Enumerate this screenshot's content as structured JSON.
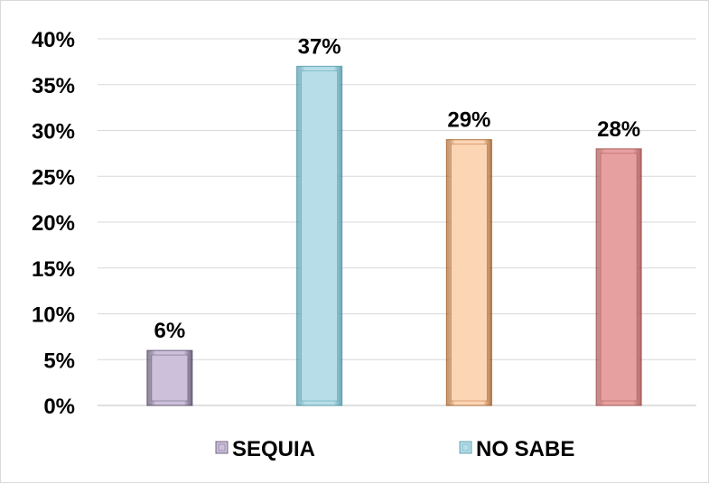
{
  "chart_data": {
    "type": "bar",
    "title": "",
    "xlabel": "",
    "ylabel": "",
    "ylim": [
      0,
      40
    ],
    "y_ticks": [
      "0%",
      "5%",
      "10%",
      "15%",
      "20%",
      "25%",
      "30%",
      "35%",
      "40%"
    ],
    "y_tick_values": [
      0,
      5,
      10,
      15,
      20,
      25,
      30,
      35,
      40
    ],
    "grid": true,
    "legend_placement": "bottom",
    "bars": [
      {
        "value": 6,
        "label": "6%",
        "color": "#ccc0da",
        "edge": "#403151"
      },
      {
        "value": 37,
        "label": "37%",
        "color": "#b7dee8",
        "edge": "#31859c"
      },
      {
        "value": 29,
        "label": "29%",
        "color": "#fcd5b4",
        "edge": "#974706"
      },
      {
        "value": 28,
        "label": "28%",
        "color": "#e6a0a0",
        "edge": "#953735"
      }
    ],
    "legend": [
      {
        "name": "SEQUIA",
        "color": "#ccc0da",
        "edge": "#403151",
        "bar_index": 0
      },
      {
        "name": "NO SABE",
        "color": "#b7dee8",
        "edge": "#31859c",
        "bar_index": 1
      }
    ]
  }
}
